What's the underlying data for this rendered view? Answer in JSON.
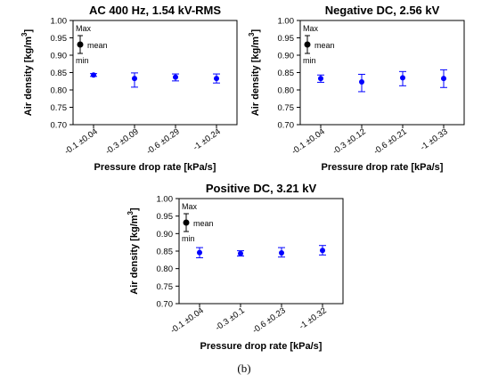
{
  "figure_label": "(b)",
  "legend": {
    "max_label": "Max",
    "mean_label": "mean",
    "min_label": "min"
  },
  "chart_data": [
    {
      "type": "scatter",
      "title": "AC 400 Hz, 1.54 kV-RMS",
      "xlabel": "Pressure drop rate [kPa/s]",
      "ylabel": "Air density [kg/m3]",
      "ylabel_main": "Air density [kg/m",
      "ylabel_sup": "3",
      "ylabel_end": "]",
      "categories": [
        "-0.1 ±0.04",
        "-0.3 ±0.09",
        "-0.6 ±0.29",
        "-1 ±0.24"
      ],
      "mean": [
        0.843,
        0.833,
        0.837,
        0.833
      ],
      "max": [
        0.847,
        0.849,
        0.846,
        0.846
      ],
      "min": [
        0.839,
        0.808,
        0.826,
        0.82
      ],
      "yticks": [
        "0.70",
        "0.75",
        "0.80",
        "0.85",
        "0.90",
        "0.95",
        "1.00"
      ],
      "ylim": [
        0.7,
        1.0
      ],
      "marker_color": "#0000ff",
      "errorbar_color": "#0000ff",
      "grid": false,
      "legend_position": "top-left"
    },
    {
      "type": "scatter",
      "title": "Negative DC, 2.56 kV",
      "xlabel": "Pressure drop rate [kPa/s]",
      "ylabel": "Air density [kg/m3]",
      "ylabel_main": "Air density [kg/m",
      "ylabel_sup": "3",
      "ylabel_end": "]",
      "categories": [
        "-0.1 ±0.04",
        "-0.3 ±0.12",
        "-0.6 ±0.21",
        "-1 ±0.33"
      ],
      "mean": [
        0.833,
        0.823,
        0.835,
        0.833
      ],
      "max": [
        0.843,
        0.845,
        0.853,
        0.858
      ],
      "min": [
        0.822,
        0.795,
        0.812,
        0.807
      ],
      "yticks": [
        "0.70",
        "0.75",
        "0.80",
        "0.85",
        "0.90",
        "0.95",
        "1.00"
      ],
      "ylim": [
        0.7,
        1.0
      ],
      "marker_color": "#0000ff",
      "errorbar_color": "#0000ff",
      "grid": false,
      "legend_position": "top-left"
    },
    {
      "type": "scatter",
      "title": "Positive DC, 3.21 kV",
      "xlabel": "Pressure drop rate [kPa/s]",
      "ylabel": "Air density [kg/m3]",
      "ylabel_main": "Air density [kg/m",
      "ylabel_sup": "3",
      "ylabel_end": "]",
      "categories": [
        "-0.1 ±0.04",
        "-0.3 ±0.1",
        "-0.6 ±0.23",
        "-1 ±0.32"
      ],
      "mean": [
        0.846,
        0.843,
        0.845,
        0.852
      ],
      "max": [
        0.86,
        0.851,
        0.86,
        0.866
      ],
      "min": [
        0.831,
        0.836,
        0.833,
        0.839
      ],
      "yticks": [
        "0.70",
        "0.75",
        "0.80",
        "0.85",
        "0.90",
        "0.95",
        "1.00"
      ],
      "ylim": [
        0.7,
        1.0
      ],
      "marker_color": "#0000ff",
      "errorbar_color": "#0000ff",
      "grid": false,
      "legend_position": "top-left"
    }
  ]
}
